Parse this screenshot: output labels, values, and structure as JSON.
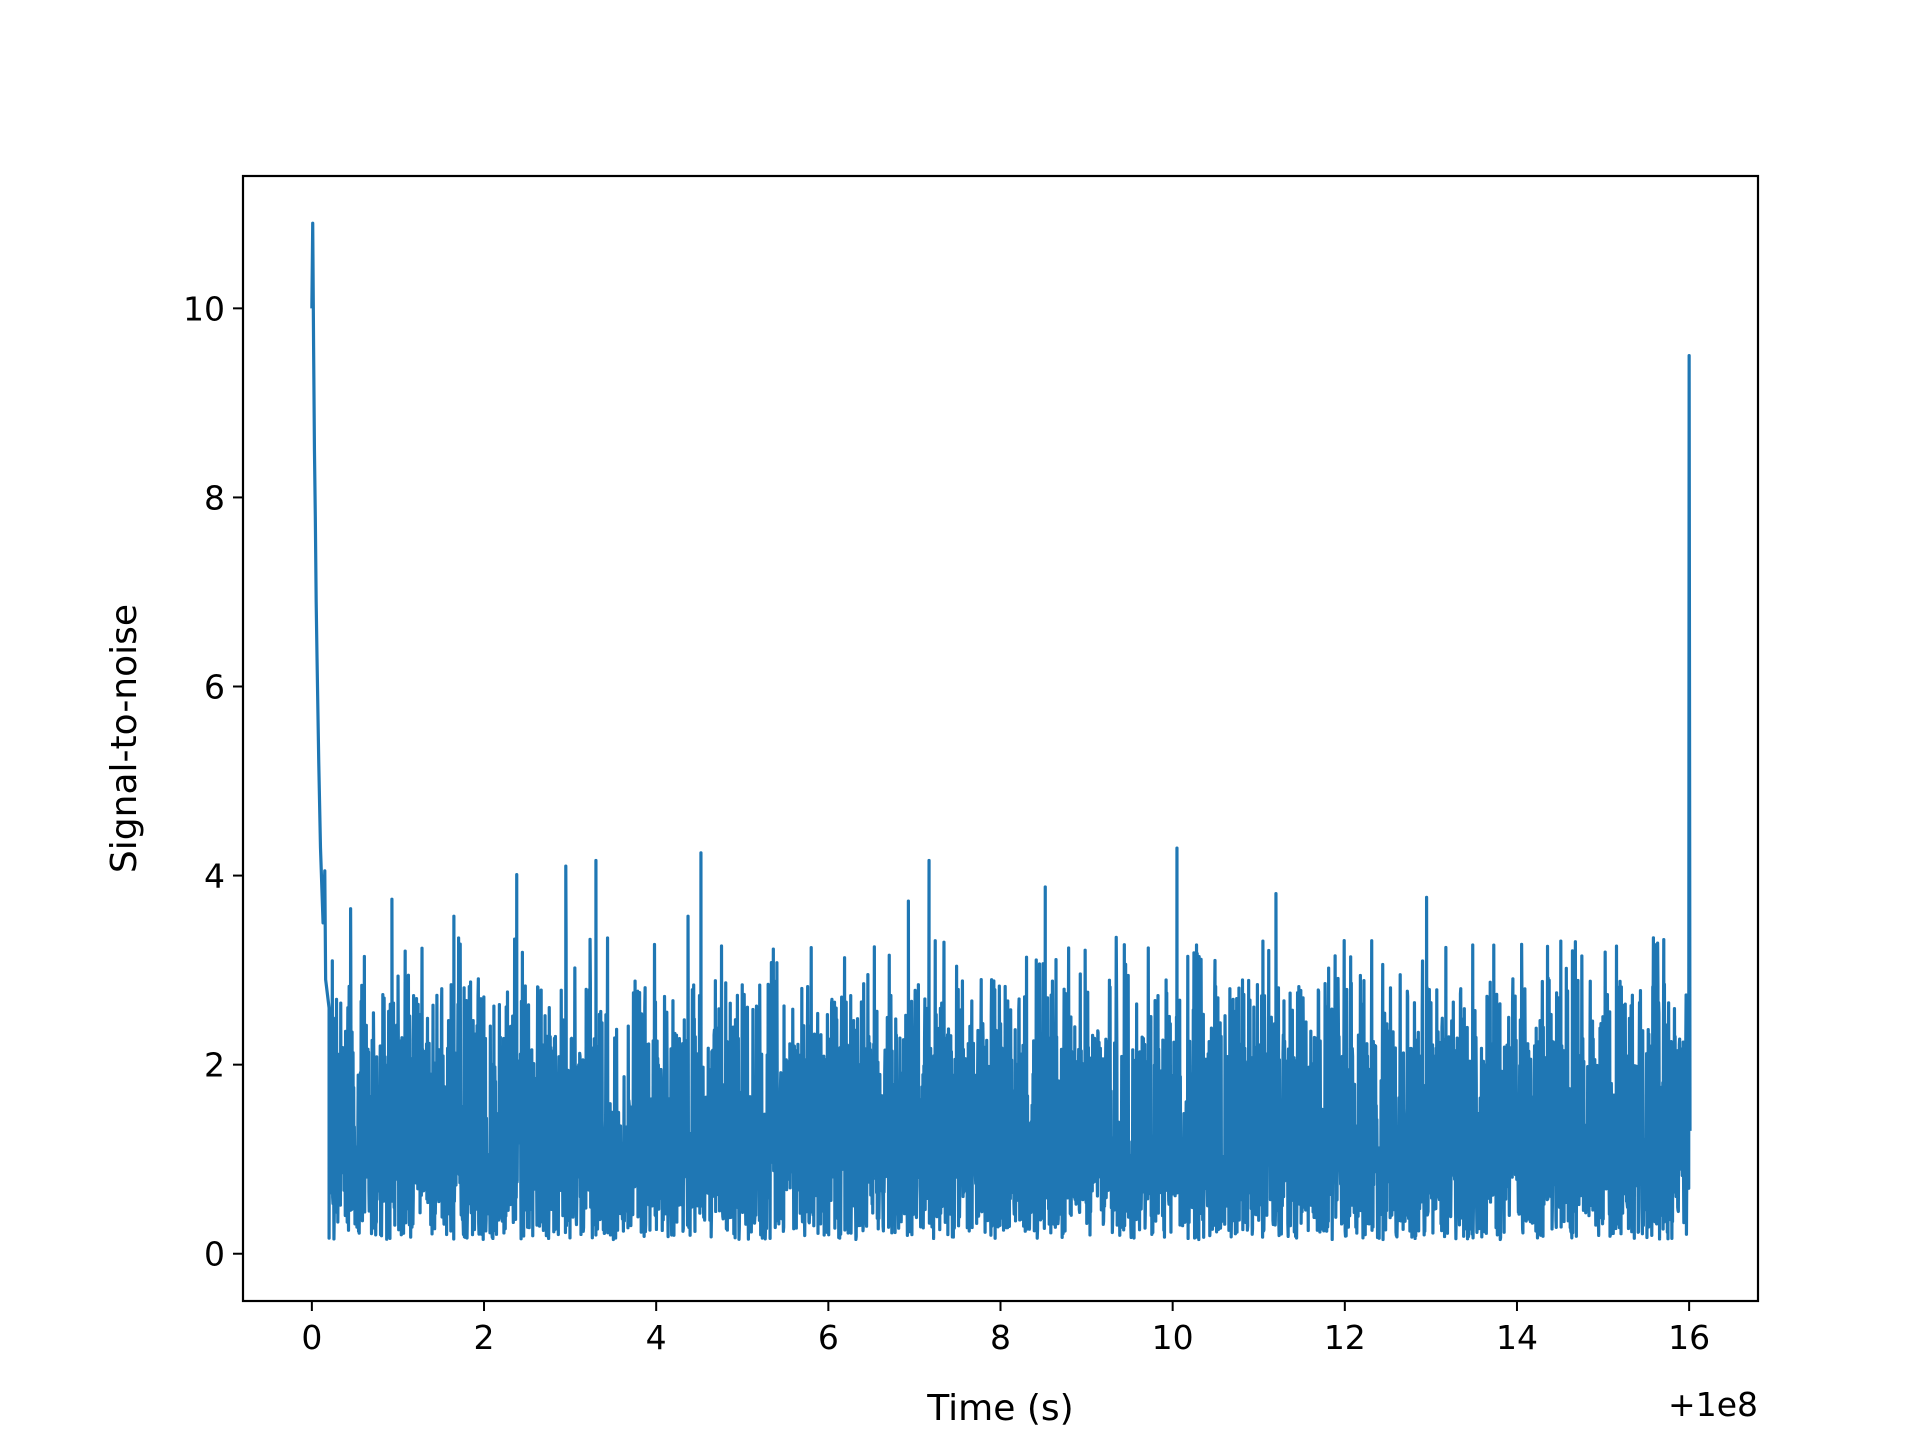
{
  "chart_data": {
    "type": "line",
    "title": "",
    "xlabel": "Time (s)",
    "ylabel": "Signal-to-noise",
    "x_offset_label": "+1e8",
    "xlim": [
      -0.8,
      16.8
    ],
    "ylim": [
      -0.5,
      11.4
    ],
    "x_ticks": [
      0,
      2,
      4,
      6,
      8,
      10,
      12,
      14,
      16
    ],
    "y_ticks": [
      0,
      2,
      4,
      6,
      8,
      10
    ],
    "grid": false,
    "color": "#1f77b4",
    "x_range": [
      0,
      16
    ],
    "series": [
      {
        "x": [
          0.0,
          0.01,
          0.02,
          0.03,
          0.04,
          0.05,
          0.06,
          0.08,
          0.1,
          0.13,
          0.16,
          0.2,
          16.0,
          16.01
        ],
        "values": [
          10.0,
          10.9,
          9.6,
          8.5,
          7.8,
          6.9,
          6.3,
          5.2,
          4.3,
          3.5,
          2.9,
          2.6,
          9.5,
          1.3
        ]
      }
    ],
    "noise_peaks": [
      {
        "x": 0.15,
        "y": 4.05
      },
      {
        "x": 0.45,
        "y": 3.65
      },
      {
        "x": 0.93,
        "y": 3.75
      },
      {
        "x": 1.65,
        "y": 3.57
      },
      {
        "x": 2.38,
        "y": 4.01
      },
      {
        "x": 2.95,
        "y": 4.1
      },
      {
        "x": 3.3,
        "y": 4.16
      },
      {
        "x": 4.37,
        "y": 3.57
      },
      {
        "x": 4.52,
        "y": 4.24
      },
      {
        "x": 6.93,
        "y": 3.73
      },
      {
        "x": 7.17,
        "y": 4.16
      },
      {
        "x": 8.52,
        "y": 3.88
      },
      {
        "x": 10.05,
        "y": 4.29
      },
      {
        "x": 11.2,
        "y": 3.81
      },
      {
        "x": 12.95,
        "y": 3.77
      },
      {
        "x": 15.6,
        "y": 3.27
      }
    ]
  }
}
